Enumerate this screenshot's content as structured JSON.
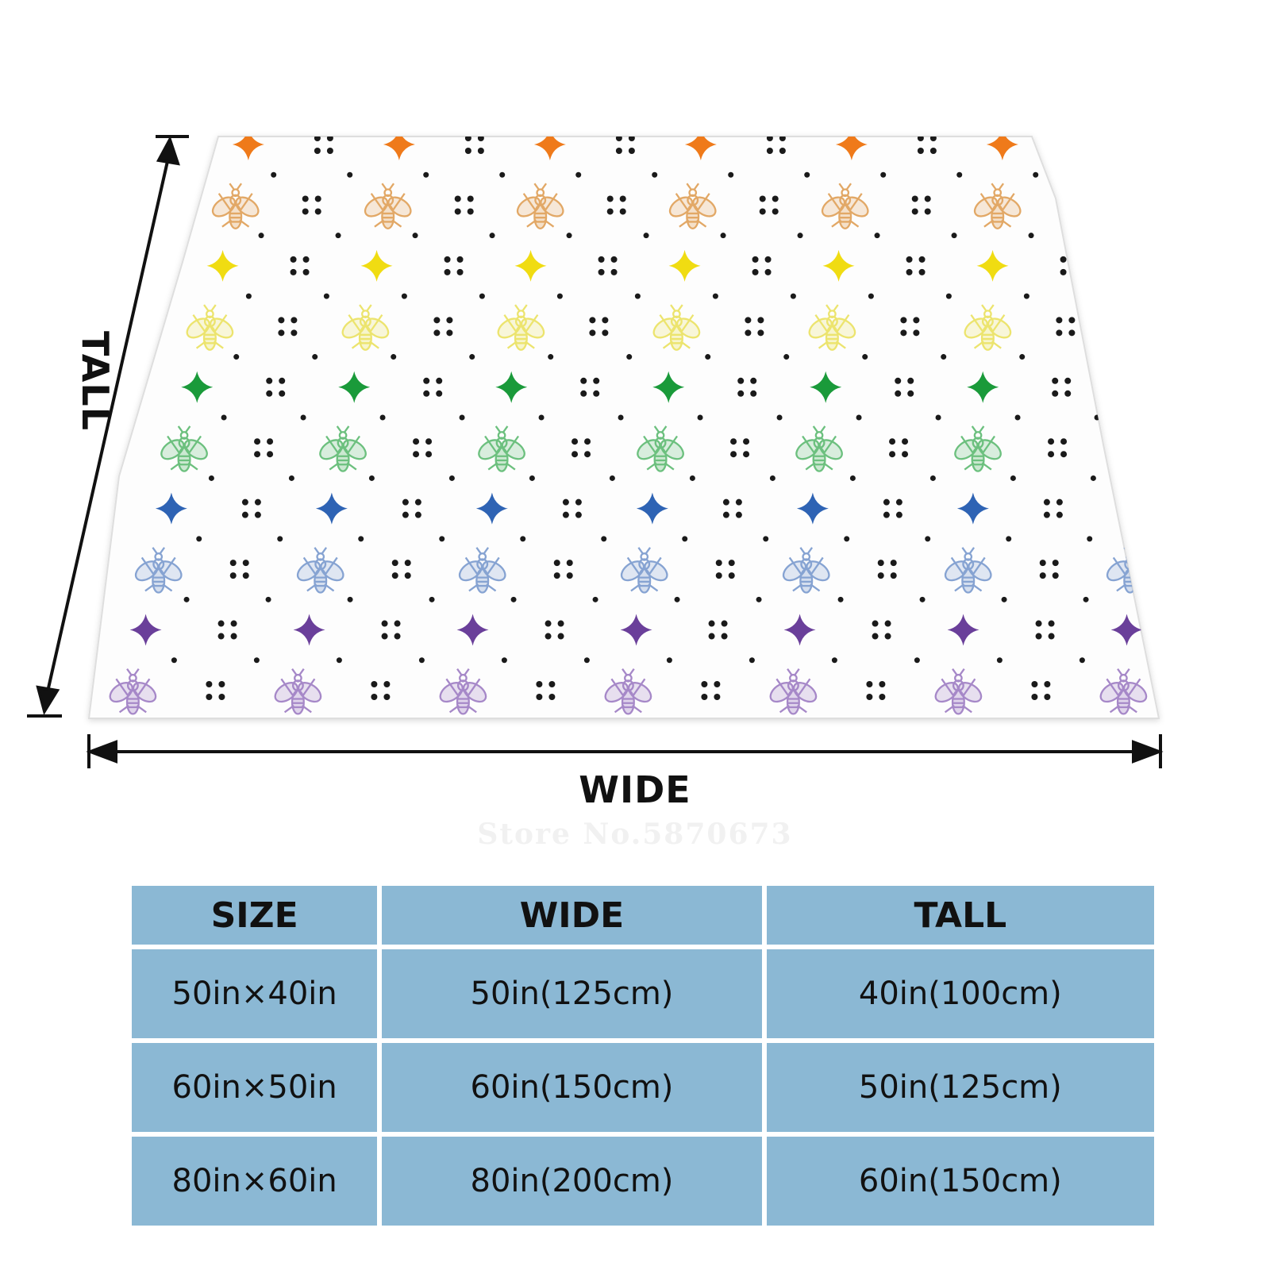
{
  "dimensions": {
    "wide_label": "WIDE",
    "tall_label": "TALL"
  },
  "watermark": "Store No.5870673",
  "pattern": {
    "rows": [
      {
        "motif": "star",
        "color": "#ef7a1a"
      },
      {
        "motif": "bee",
        "color": "#e2a866"
      },
      {
        "motif": "star",
        "color": "#f0dc12"
      },
      {
        "motif": "bee",
        "color": "#ece46e"
      },
      {
        "motif": "star",
        "color": "#1a9a3a"
      },
      {
        "motif": "bee",
        "color": "#6cc07e"
      },
      {
        "motif": "star",
        "color": "#2e63b4"
      },
      {
        "motif": "bee",
        "color": "#86a3d2"
      },
      {
        "motif": "star",
        "color": "#6a3f9a"
      },
      {
        "motif": "bee",
        "color": "#a688c8"
      }
    ],
    "dot_color": "#1a1a1a",
    "background": "#ffffff"
  },
  "size_table": {
    "headers": [
      "SIZE",
      "WIDE",
      "TALL"
    ],
    "rows": [
      [
        "50in×40in",
        "50in(125cm)",
        "40in(100cm)"
      ],
      [
        "60in×50in",
        "60in(150cm)",
        "50in(125cm)"
      ],
      [
        "80in×60in",
        "80in(200cm)",
        "60in(150cm)"
      ]
    ],
    "cell_color": "#8bb8d4"
  }
}
